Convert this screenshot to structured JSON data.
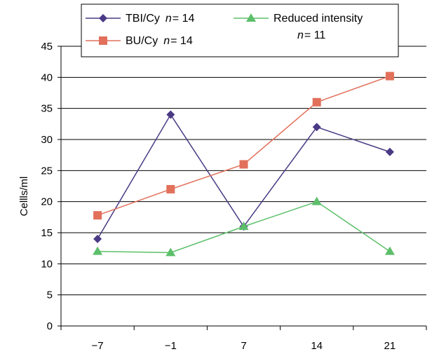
{
  "chart_data": {
    "type": "line",
    "title": "",
    "xlabel": "",
    "ylabel": "Cellls/ml",
    "categories": [
      "−7",
      "−1",
      "7",
      "14",
      "21"
    ],
    "ylim": [
      0,
      45
    ],
    "yticks": [
      0,
      5,
      10,
      15,
      20,
      25,
      30,
      35,
      40,
      45
    ],
    "grid": true,
    "legend_position": "top",
    "series": [
      {
        "label": "TBI/Cy",
        "n_label": "n",
        "n_value": "= 14",
        "color": "#4a3a85",
        "marker": "diamond",
        "values": [
          14,
          34,
          16,
          32,
          28
        ]
      },
      {
        "label": "BU/Cy",
        "n_label": "n",
        "n_value": "= 14",
        "color": "#e2705b",
        "marker": "square",
        "values": [
          17.8,
          22,
          26,
          36,
          40.2
        ]
      },
      {
        "label": "Reduced intensity",
        "n_label": "n",
        "n_value": "= 11",
        "color": "#5cbf6a",
        "marker": "triangle",
        "values": [
          12,
          11.8,
          16,
          20,
          12
        ]
      }
    ]
  }
}
